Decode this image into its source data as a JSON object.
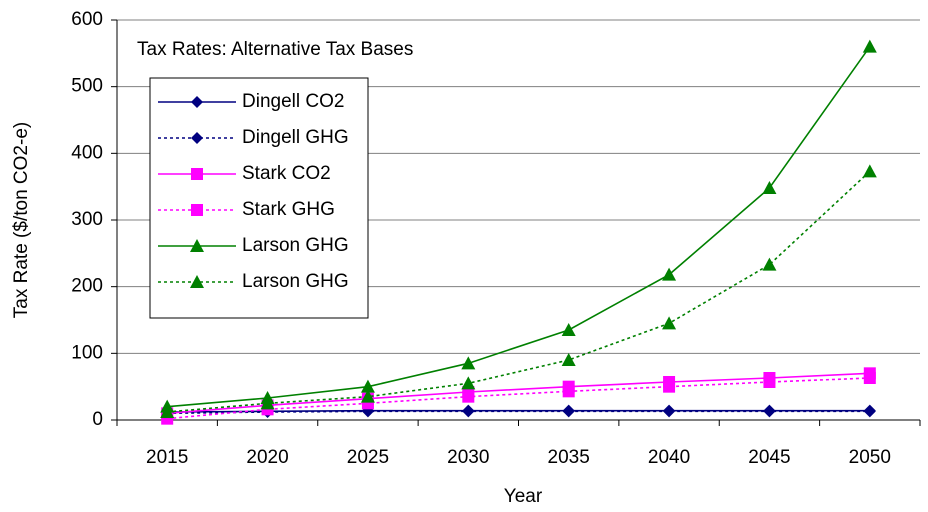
{
  "chart_data": {
    "type": "line",
    "title": "Tax Rates: Alternative Tax Bases",
    "x_label": "Year",
    "y_label": "Tax Rate ($/ton CO2-e)",
    "categories": [
      "2015",
      "2020",
      "2025",
      "2030",
      "2035",
      "2040",
      "2045",
      "2050"
    ],
    "series": [
      {
        "name": "Dingell CO2",
        "color": "#000080",
        "marker": "diamond",
        "dash": "solid",
        "values": [
          12,
          13,
          14,
          14,
          14,
          14,
          14,
          14
        ]
      },
      {
        "name": "Dingell GHG",
        "color": "#000080",
        "marker": "diamond",
        "dash": "dotted",
        "values": [
          10,
          12,
          13,
          13,
          13,
          13,
          13,
          13
        ]
      },
      {
        "name": "Stark CO2",
        "color": "#ff00ff",
        "marker": "square",
        "dash": "solid",
        "values": [
          10,
          22,
          32,
          42,
          50,
          57,
          63,
          70
        ]
      },
      {
        "name": "Stark GHG",
        "color": "#ff00ff",
        "marker": "square",
        "dash": "dotted",
        "values": [
          2,
          16,
          25,
          35,
          43,
          50,
          57,
          63
        ]
      },
      {
        "name": "Larson GHG",
        "color": "#008000",
        "marker": "triangle",
        "dash": "solid",
        "values": [
          20,
          33,
          50,
          85,
          135,
          218,
          348,
          560
        ]
      },
      {
        "name": "Larson GHG",
        "color": "#008000",
        "marker": "triangle",
        "dash": "dotted",
        "values": [
          12,
          25,
          35,
          55,
          90,
          145,
          233,
          373
        ]
      }
    ],
    "ylim": [
      0,
      600
    ],
    "yticks": [
      0,
      100,
      200,
      300,
      400,
      500,
      600
    ],
    "grid": true
  }
}
